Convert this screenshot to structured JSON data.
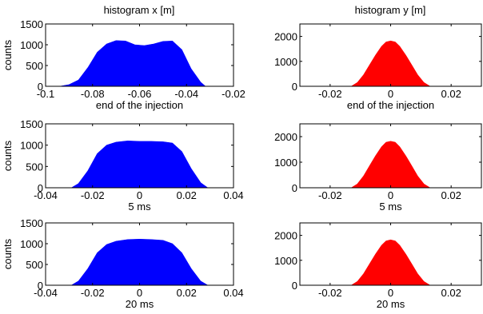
{
  "figure": {
    "titles": {
      "left": "histogram x [m]",
      "right": "histogram y [m]"
    }
  },
  "chart_data": [
    {
      "type": "area",
      "column": "x",
      "row": 0,
      "ylabel": "counts",
      "xlabel": "end of the injection",
      "xlim": [
        -0.1,
        -0.02
      ],
      "ylim": [
        0,
        1500
      ],
      "xticks": [
        -0.1,
        -0.08,
        -0.06,
        -0.04,
        -0.02
      ],
      "xtick_labels": [
        "-0.1",
        "-0.08",
        "-0.06",
        "-0.04",
        "-0.02"
      ],
      "yticks": [
        0,
        500,
        1000,
        1500
      ],
      "ytick_labels": [
        "0",
        "500",
        "1000",
        "1500"
      ],
      "color": "#0000ff",
      "series": [
        {
          "x": [
            -0.094,
            -0.09,
            -0.086,
            -0.082,
            -0.078,
            -0.074,
            -0.07,
            -0.066,
            -0.062,
            -0.058,
            -0.054,
            -0.05,
            -0.046,
            -0.042,
            -0.038,
            -0.034,
            -0.032
          ],
          "y": [
            0,
            40,
            150,
            450,
            820,
            1020,
            1100,
            1090,
            1000,
            980,
            1020,
            1080,
            1090,
            880,
            420,
            100,
            0
          ]
        }
      ]
    },
    {
      "type": "area",
      "column": "y",
      "row": 0,
      "ylabel": "",
      "xlabel": "end of the injection",
      "xlim": [
        -0.03,
        0.03
      ],
      "ylim": [
        0,
        2500
      ],
      "xticks": [
        -0.02,
        0,
        0.02
      ],
      "xtick_labels": [
        "-0.02",
        "0",
        "0.02"
      ],
      "yticks": [
        0,
        1000,
        2000
      ],
      "ytick_labels": [
        "0",
        "1000",
        "2000"
      ],
      "color": "#ff0000",
      "series": [
        {
          "x": [
            -0.013,
            -0.011,
            -0.009,
            -0.007,
            -0.005,
            -0.003,
            -0.0015,
            0,
            0.0015,
            0.003,
            0.005,
            0.007,
            0.009,
            0.011,
            0.013
          ],
          "y": [
            0,
            150,
            450,
            850,
            1250,
            1600,
            1780,
            1820,
            1780,
            1600,
            1250,
            850,
            450,
            150,
            0
          ]
        }
      ]
    },
    {
      "type": "area",
      "column": "x",
      "row": 1,
      "ylabel": "counts",
      "xlabel": "5 ms",
      "xlim": [
        -0.04,
        0.04
      ],
      "ylim": [
        0,
        1500
      ],
      "xticks": [
        -0.04,
        -0.02,
        0,
        0.02,
        0.04
      ],
      "xtick_labels": [
        "-0.04",
        "-0.02",
        "0",
        "0.02",
        "0.04"
      ],
      "yticks": [
        0,
        500,
        1000,
        1500
      ],
      "ytick_labels": [
        "0",
        "500",
        "1000",
        "1500"
      ],
      "color": "#0000ff",
      "series": [
        {
          "x": [
            -0.029,
            -0.026,
            -0.022,
            -0.018,
            -0.014,
            -0.01,
            -0.005,
            0,
            0.005,
            0.01,
            0.014,
            0.018,
            0.022,
            0.026,
            0.029
          ],
          "y": [
            0,
            100,
            400,
            800,
            1000,
            1070,
            1100,
            1090,
            1090,
            1080,
            1050,
            850,
            450,
            120,
            0
          ]
        }
      ]
    },
    {
      "type": "area",
      "column": "y",
      "row": 1,
      "ylabel": "",
      "xlabel": "5 ms",
      "xlim": [
        -0.03,
        0.03
      ],
      "ylim": [
        0,
        2500
      ],
      "xticks": [
        -0.02,
        0,
        0.02
      ],
      "xtick_labels": [
        "-0.02",
        "0",
        "0.02"
      ],
      "yticks": [
        0,
        1000,
        2000
      ],
      "ytick_labels": [
        "0",
        "1000",
        "2000"
      ],
      "color": "#ff0000",
      "series": [
        {
          "x": [
            -0.013,
            -0.011,
            -0.009,
            -0.007,
            -0.005,
            -0.003,
            -0.0015,
            0,
            0.0015,
            0.003,
            0.005,
            0.007,
            0.009,
            0.011,
            0.013
          ],
          "y": [
            0,
            150,
            450,
            850,
            1250,
            1600,
            1780,
            1820,
            1780,
            1600,
            1250,
            850,
            450,
            150,
            0
          ]
        }
      ]
    },
    {
      "type": "area",
      "column": "x",
      "row": 2,
      "ylabel": "counts",
      "xlabel": "20 ms",
      "xlim": [
        -0.04,
        0.04
      ],
      "ylim": [
        0,
        1500
      ],
      "xticks": [
        -0.04,
        -0.02,
        0,
        0.02,
        0.04
      ],
      "xtick_labels": [
        "-0.04",
        "-0.02",
        "0",
        "0.02",
        "0.04"
      ],
      "yticks": [
        0,
        500,
        1000,
        1500
      ],
      "ytick_labels": [
        "0",
        "500",
        "1000",
        "1500"
      ],
      "color": "#0000ff",
      "series": [
        {
          "x": [
            -0.029,
            -0.026,
            -0.022,
            -0.018,
            -0.014,
            -0.01,
            -0.005,
            0,
            0.005,
            0.01,
            0.014,
            0.018,
            0.022,
            0.026,
            0.029
          ],
          "y": [
            0,
            100,
            400,
            780,
            980,
            1060,
            1100,
            1110,
            1100,
            1080,
            1000,
            780,
            400,
            100,
            0
          ]
        }
      ]
    },
    {
      "type": "area",
      "column": "y",
      "row": 2,
      "ylabel": "",
      "xlabel": "20 ms",
      "xlim": [
        -0.03,
        0.03
      ],
      "ylim": [
        0,
        2500
      ],
      "xticks": [
        -0.02,
        0,
        0.02
      ],
      "xtick_labels": [
        "-0.02",
        "0",
        "0.02"
      ],
      "yticks": [
        0,
        1000,
        2000
      ],
      "ytick_labels": [
        "0",
        "1000",
        "2000"
      ],
      "color": "#ff0000",
      "series": [
        {
          "x": [
            -0.013,
            -0.011,
            -0.009,
            -0.007,
            -0.005,
            -0.003,
            -0.0015,
            0,
            0.0015,
            0.003,
            0.005,
            0.007,
            0.009,
            0.011,
            0.013
          ],
          "y": [
            0,
            150,
            450,
            850,
            1250,
            1600,
            1780,
            1820,
            1780,
            1600,
            1250,
            850,
            450,
            150,
            0
          ]
        }
      ]
    }
  ]
}
